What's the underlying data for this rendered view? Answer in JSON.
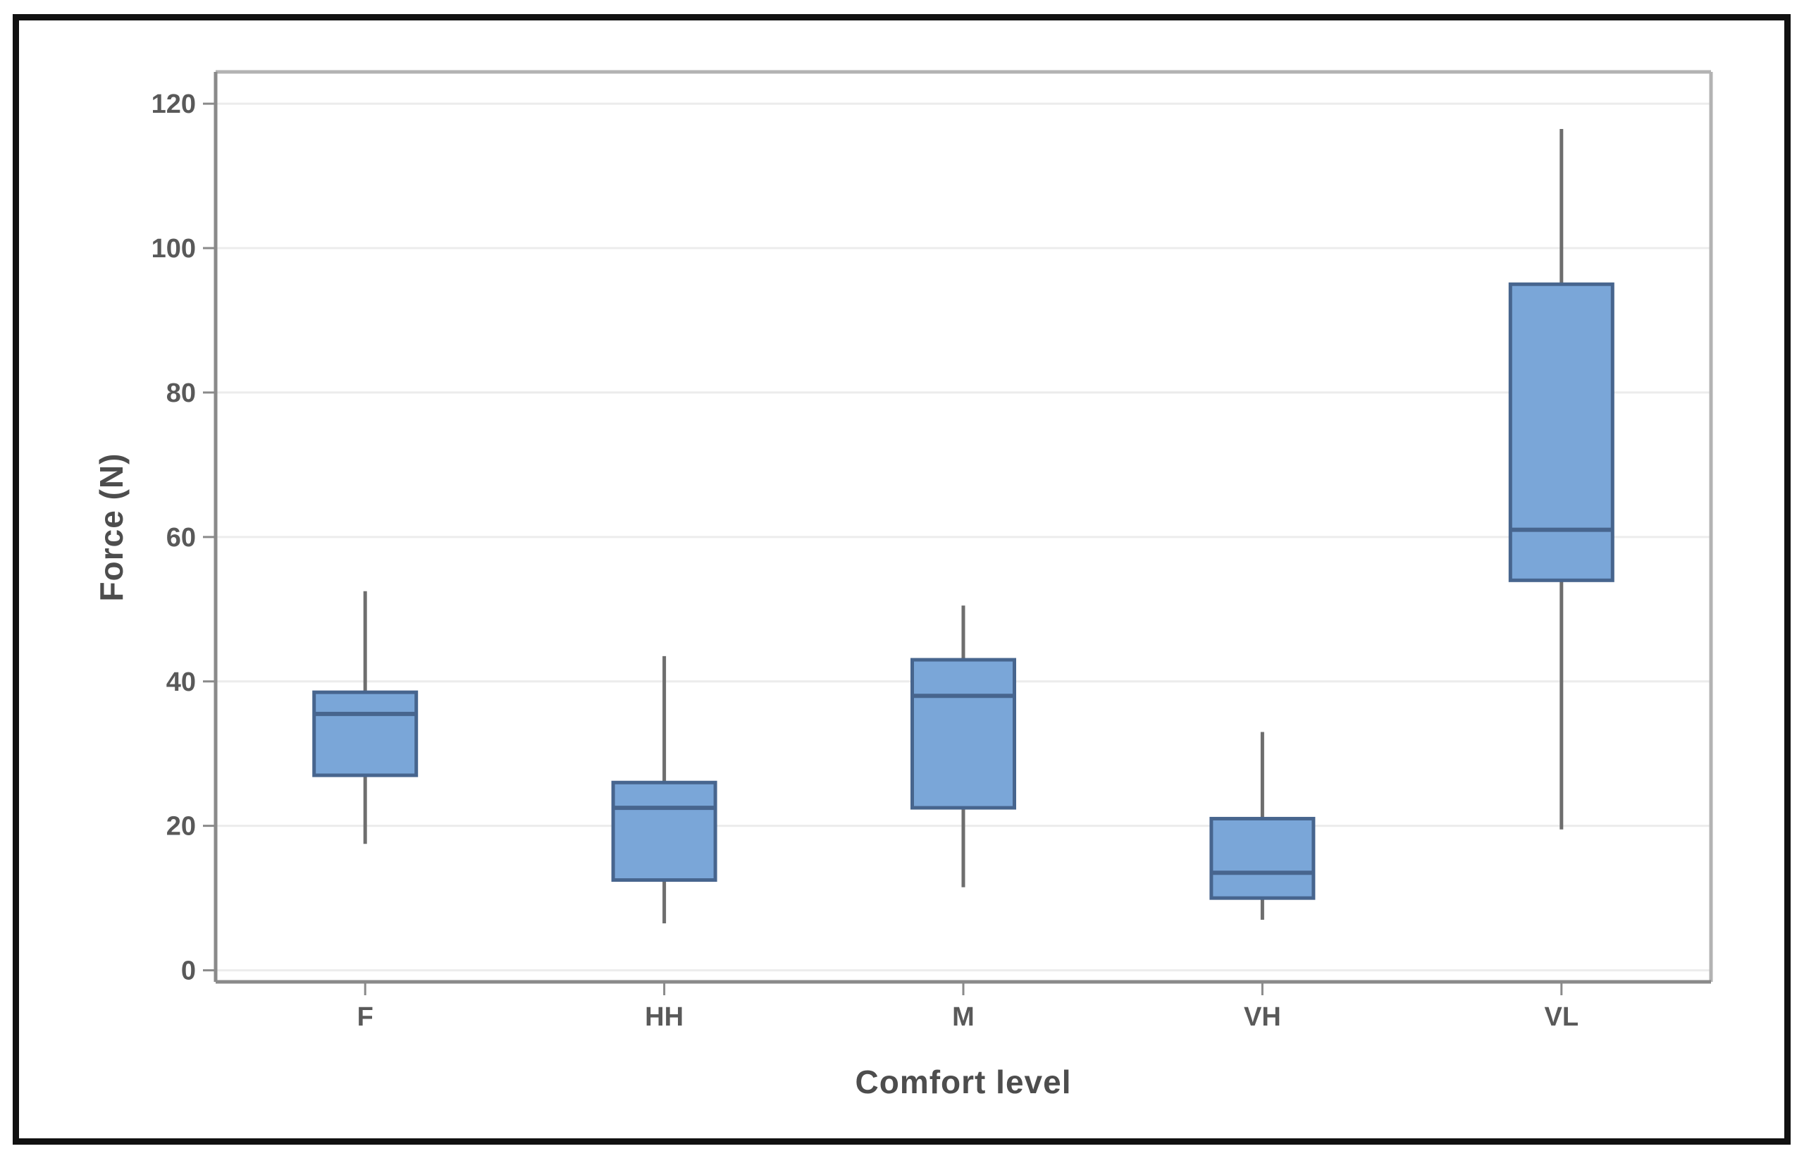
{
  "figure": {
    "background_color": "#ffffff",
    "outer_border_color": "#111111"
  },
  "chart_data": {
    "type": "box",
    "title": "",
    "xlabel": "Comfort level",
    "ylabel": "Force (N)",
    "categories": [
      "F",
      "HH",
      "M",
      "VH",
      "VL"
    ],
    "series": [
      {
        "name": "F",
        "whisker_low": 17.5,
        "q1": 27.0,
        "median": 35.5,
        "q3": 38.5,
        "whisker_high": 52.5
      },
      {
        "name": "HH",
        "whisker_low": 6.5,
        "q1": 12.5,
        "median": 22.5,
        "q3": 26.0,
        "whisker_high": 43.5
      },
      {
        "name": "M",
        "whisker_low": 11.5,
        "q1": 22.5,
        "median": 38.0,
        "q3": 43.0,
        "whisker_high": 50.5
      },
      {
        "name": "VH",
        "whisker_low": 7.0,
        "q1": 10.0,
        "median": 13.5,
        "q3": 21.0,
        "whisker_high": 33.0
      },
      {
        "name": "VL",
        "whisker_low": 19.5,
        "q1": 54.0,
        "median": 61.0,
        "q3": 95.0,
        "whisker_high": 116.5
      }
    ],
    "y_ticks": [
      0,
      20,
      40,
      60,
      80,
      100,
      120
    ],
    "y_tick_labels": [
      "0",
      "20",
      "40",
      "60",
      "80",
      "100",
      "120"
    ],
    "ylim": [
      -1.6,
      124.4
    ],
    "grid": "horizontal",
    "legend": "none",
    "colors": {
      "box_fill": "#7aa6d8",
      "box_border": "#47658e",
      "median_line": "#47658e",
      "whisker": "#6e6e6e",
      "gridline": "#ececec",
      "frame_light": "#b3b3b3",
      "axis_line": "#8a8a8a",
      "tick_label": "#595959",
      "axis_title": "#4d4d4d"
    }
  }
}
